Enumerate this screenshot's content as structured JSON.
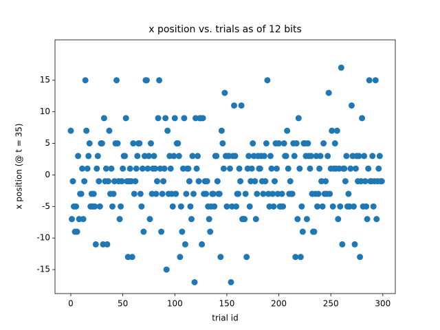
{
  "chart_data": {
    "type": "scatter",
    "title": "x position vs. trials as of 12 bits",
    "xlabel": "trial id",
    "ylabel": "x position (@ t = 35)",
    "color": "#1f77b4",
    "xlim": [
      -15.2,
      312
    ],
    "ylim": [
      -18.8,
      21.4
    ],
    "xticks": [
      0,
      50,
      100,
      150,
      200,
      250,
      300
    ],
    "yticks": [
      -15,
      -10,
      -5,
      0,
      5,
      10,
      15
    ],
    "x": [
      0,
      1,
      2,
      3,
      4,
      5,
      6,
      7,
      8,
      9,
      10,
      11,
      12,
      13,
      14,
      15,
      16,
      17,
      18,
      19,
      20,
      21,
      22,
      23,
      24,
      25,
      26,
      27,
      28,
      29,
      30,
      31,
      32,
      33,
      34,
      35,
      36,
      37,
      38,
      39,
      40,
      41,
      42,
      43,
      44,
      45,
      46,
      47,
      48,
      49,
      50,
      51,
      52,
      53,
      54,
      55,
      56,
      57,
      58,
      59,
      60,
      61,
      62,
      63,
      64,
      65,
      66,
      67,
      68,
      69,
      70,
      71,
      72,
      73,
      74,
      75,
      76,
      77,
      78,
      79,
      80,
      81,
      82,
      83,
      84,
      85,
      86,
      87,
      88,
      89,
      90,
      91,
      92,
      93,
      94,
      95,
      96,
      97,
      98,
      99,
      100,
      101,
      102,
      103,
      104,
      105,
      106,
      107,
      108,
      109,
      110,
      111,
      112,
      113,
      114,
      115,
      116,
      117,
      118,
      119,
      120,
      121,
      122,
      123,
      124,
      125,
      126,
      127,
      128,
      129,
      130,
      131,
      132,
      133,
      134,
      135,
      136,
      137,
      138,
      139,
      140,
      141,
      142,
      143,
      144,
      145,
      146,
      147,
      148,
      149,
      150,
      151,
      152,
      153,
      154,
      155,
      156,
      157,
      158,
      159,
      160,
      161,
      162,
      163,
      164,
      165,
      166,
      167,
      168,
      169,
      170,
      171,
      172,
      173,
      174,
      175,
      176,
      177,
      178,
      179,
      180,
      181,
      182,
      183,
      184,
      185,
      186,
      187,
      188,
      189,
      190,
      191,
      192,
      193,
      194,
      195,
      196,
      197,
      198,
      199,
      200,
      201,
      202,
      203,
      204,
      205,
      206,
      207,
      208,
      209,
      210,
      211,
      212,
      213,
      214,
      215,
      216,
      217,
      218,
      219,
      220,
      221,
      222,
      223,
      224,
      225,
      226,
      227,
      228,
      229,
      230,
      231,
      232,
      233,
      234,
      235,
      236,
      237,
      238,
      239,
      240,
      241,
      242,
      243,
      244,
      245,
      246,
      247,
      248,
      249,
      250,
      251,
      252,
      253,
      254,
      255,
      256,
      257,
      258,
      259,
      260,
      261,
      262,
      263,
      264,
      265,
      266,
      267,
      268,
      269,
      270,
      271,
      272,
      273,
      274,
      275,
      276,
      277,
      278,
      279,
      280,
      281,
      282,
      283,
      284,
      285,
      286,
      287,
      288,
      289,
      290,
      291,
      292,
      293,
      294,
      295,
      296,
      297,
      298,
      299
    ],
    "values": [
      7,
      -7,
      -1,
      -5,
      -9,
      -5,
      -9,
      3,
      -7,
      -3,
      -3,
      1,
      -7,
      -1,
      15,
      7,
      1,
      3,
      5,
      -5,
      -3,
      -5,
      -3,
      -5,
      -11,
      1,
      3,
      -1,
      -5,
      5,
      5,
      -11,
      9,
      -1,
      1,
      -11,
      -1,
      7,
      -3,
      1,
      -5,
      -3,
      -1,
      5,
      15,
      5,
      -1,
      -7,
      -5,
      -1,
      1,
      3,
      3,
      9,
      -1,
      -13,
      -1,
      1,
      -1,
      -13,
      5,
      -3,
      -1,
      1,
      3,
      5,
      5,
      -3,
      -5,
      1,
      -9,
      3,
      15,
      15,
      1,
      3,
      -7,
      5,
      -3,
      1,
      3,
      1,
      -3,
      -1,
      9,
      15,
      1,
      -9,
      -3,
      -1,
      1,
      9,
      -15,
      7,
      -3,
      3,
      1,
      -3,
      -5,
      3,
      9,
      -3,
      5,
      5,
      3,
      -13,
      -5,
      -9,
      1,
      9,
      -11,
      -3,
      1,
      1,
      -1,
      -5,
      -7,
      3,
      -3,
      -17,
      9,
      1,
      3,
      -1,
      9,
      9,
      -11,
      9,
      -3,
      -1,
      -3,
      -1,
      -5,
      -7,
      -9,
      -5,
      -3,
      -3,
      -5,
      3,
      3,
      -1,
      -3,
      -3,
      -13,
      7,
      5,
      1,
      13,
      3,
      -5,
      3,
      3,
      1,
      -17,
      -5,
      3,
      11,
      3,
      -5,
      -3,
      -3,
      1,
      -1,
      11,
      -7,
      -7,
      -7,
      -3,
      -13,
      1,
      3,
      -5,
      -1,
      1,
      5,
      3,
      -1,
      -7,
      -3,
      3,
      1,
      1,
      3,
      -1,
      -3,
      3,
      -1,
      5,
      15,
      -3,
      -5,
      3,
      1,
      -3,
      -5,
      -1,
      5,
      1,
      -3,
      5,
      -5,
      -5,
      -3,
      -5,
      5,
      3,
      3,
      7,
      1,
      -3,
      -1,
      -3,
      -3,
      5,
      3,
      -13,
      5,
      -7,
      9,
      1,
      -13,
      -5,
      -9,
      5,
      5,
      3,
      -7,
      5,
      3,
      1,
      3,
      -3,
      -9,
      -9,
      -3,
      3,
      -5,
      -3,
      1,
      3,
      -1,
      -5,
      5,
      -3,
      -1,
      -3,
      3,
      13,
      -3,
      1,
      7,
      -5,
      1,
      5,
      1,
      7,
      -7,
      1,
      -5,
      17,
      -11,
      1,
      1,
      -1,
      3,
      -5,
      -3,
      -5,
      1,
      11,
      3,
      -5,
      -11,
      1,
      3,
      -1,
      3,
      -13,
      -1,
      9,
      -5,
      3,
      -1,
      -5,
      -7,
      1,
      15,
      -1,
      -1,
      3,
      -5,
      -1,
      15,
      -7,
      -1,
      1,
      3,
      -1,
      -1
    ]
  }
}
